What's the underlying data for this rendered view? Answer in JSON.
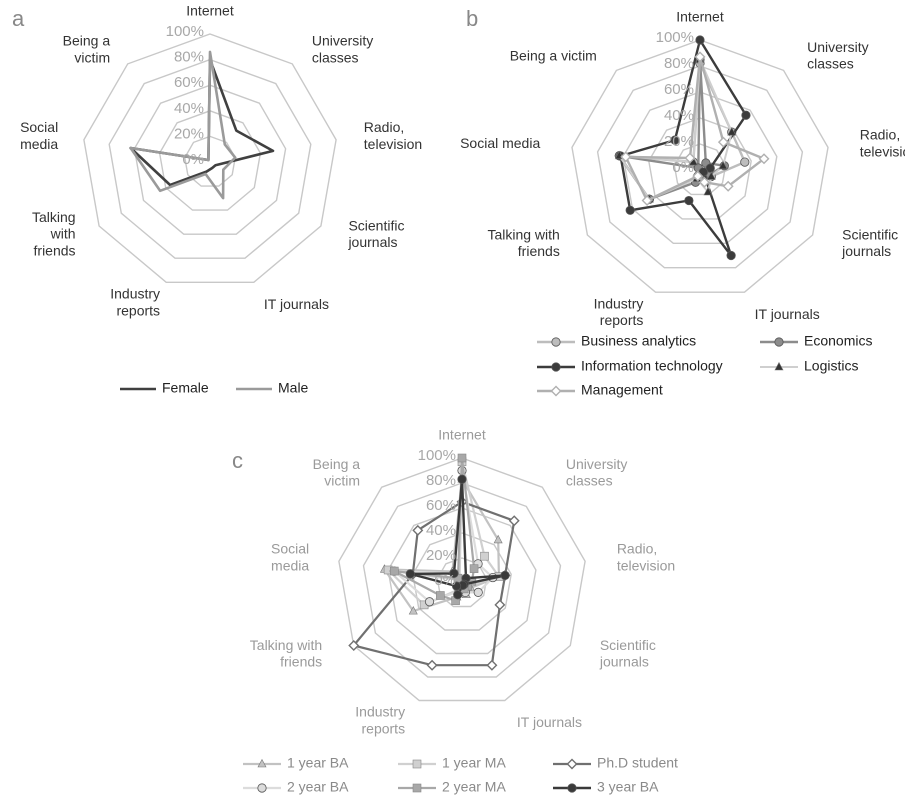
{
  "chart_data": [
    {
      "panel_letter": "a",
      "type": "radar",
      "categories": [
        "Internet",
        "University\nclasses",
        "Radio,\ntelevision",
        "Scientific\njournals",
        "IT journals",
        "Industry\nreports",
        "Talking\nwith\nfriends",
        "Social\nmedia",
        "Being a\nvictim"
      ],
      "tick_labels": [
        "0%",
        "20%",
        "40%",
        "60%",
        "80%",
        "100%"
      ],
      "ylim": [
        0,
        1
      ],
      "grid": true,
      "legend_position": "bottom",
      "series": [
        {
          "name": "Female",
          "values": [
            0.8,
            0.32,
            0.5,
            0.05,
            0.05,
            0.08,
            0.36,
            0.63,
            0.02
          ]
        },
        {
          "name": "Male",
          "values": [
            0.86,
            0.18,
            0.2,
            0.12,
            0.3,
            0.1,
            0.45,
            0.63,
            0.02
          ]
        }
      ]
    },
    {
      "panel_letter": "b",
      "type": "radar",
      "categories": [
        "Internet",
        "University\nclasses",
        "Radio,\ntelevision",
        "Scientific\njournals",
        "IT journals",
        "Industry\nreports",
        "Talking with\nfriends",
        "Social media",
        "Being a victim"
      ],
      "tick_labels": [
        "0%",
        "20%",
        "40%",
        "60%",
        "80%",
        "100%"
      ],
      "ylim": [
        0,
        1
      ],
      "grid": true,
      "legend_position": "bottom",
      "series": [
        {
          "name": "Business analytics",
          "values": [
            0.82,
            0.38,
            0.35,
            0.1,
            0.07,
            0.05,
            0.45,
            0.63,
            0.08
          ]
        },
        {
          "name": "Economics",
          "values": [
            0.85,
            0.07,
            0.19,
            0.08,
            0.07,
            0.1,
            0.45,
            0.63,
            0.02
          ]
        },
        {
          "name": "Information technology",
          "values": [
            1.0,
            0.55,
            0.08,
            0.03,
            0.7,
            0.25,
            0.62,
            0.62,
            0.3
          ]
        },
        {
          "name": "Logistics",
          "values": [
            0.85,
            0.38,
            0.18,
            0.1,
            0.18,
            0.07,
            0.45,
            0.63,
            0.08
          ]
        },
        {
          "name": "Management",
          "values": [
            0.87,
            0.28,
            0.5,
            0.25,
            0.1,
            0.05,
            0.47,
            0.58,
            0.12
          ]
        }
      ]
    },
    {
      "panel_letter": "c",
      "type": "radar",
      "categories": [
        "Internet",
        "University\nclasses",
        "Radio,\ntelevision",
        "Scientific\njournals",
        "IT journals",
        "Industry\nreports",
        "Talking with\nfriends",
        "Social\nmedia",
        "Being a\nvictim"
      ],
      "tick_labels": [
        "0%",
        "20%",
        "40%",
        "60%",
        "80%",
        "100%"
      ],
      "ylim": [
        0,
        1
      ],
      "grid": true,
      "legend_position": "bottom",
      "series": [
        {
          "name": "1 year BA",
          "values": [
            0.83,
            0.45,
            0.3,
            0.08,
            0.1,
            0.12,
            0.45,
            0.63,
            0.12
          ]
        },
        {
          "name": "1 year MA",
          "values": [
            0.97,
            0.28,
            0.3,
            0.05,
            0.03,
            0.05,
            0.35,
            0.6,
            0.03
          ]
        },
        {
          "name": "Ph.D student",
          "values": [
            0.65,
            0.65,
            0.35,
            0.35,
            0.7,
            0.7,
            1.0,
            0.4,
            0.55
          ]
        },
        {
          "name": "2 year BA",
          "values": [
            0.9,
            0.2,
            0.25,
            0.15,
            0.08,
            0.07,
            0.3,
            0.55,
            0.1
          ]
        },
        {
          "name": "2 year MA",
          "values": [
            1.0,
            0.15,
            0.08,
            0.05,
            0.05,
            0.15,
            0.2,
            0.55,
            0.05
          ]
        },
        {
          "name": "3 year BA",
          "values": [
            0.83,
            0.05,
            0.35,
            0.02,
            0.02,
            0.1,
            0.05,
            0.42,
            0.1
          ]
        }
      ]
    }
  ]
}
